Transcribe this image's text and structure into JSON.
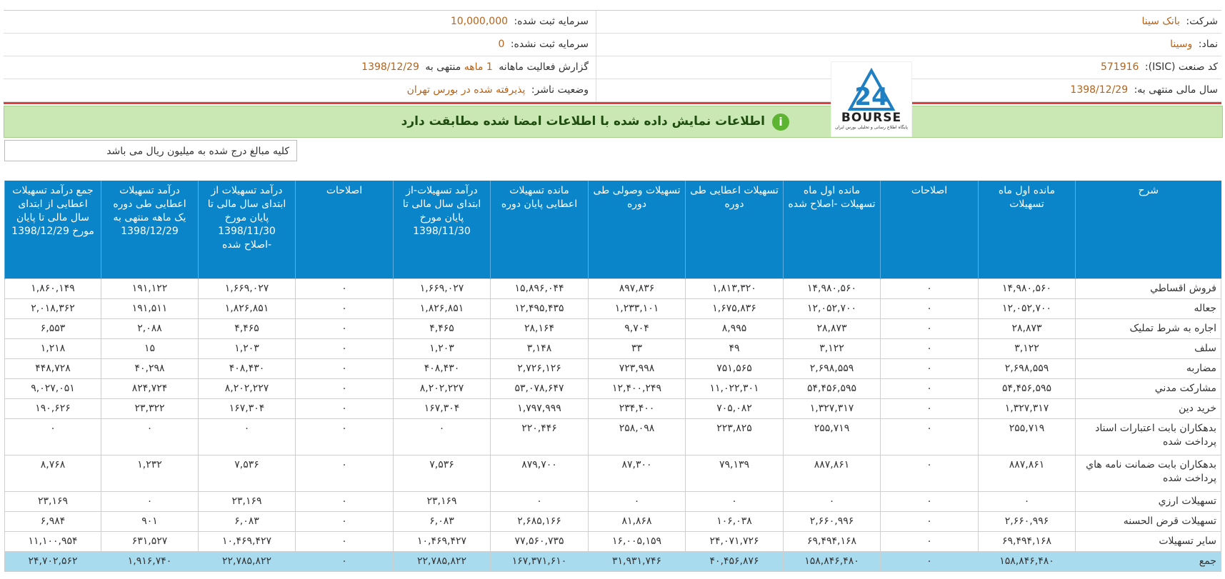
{
  "company": {
    "company_label": "شرکت:",
    "company_value": "بانک سینا",
    "symbol_label": "نماد:",
    "symbol_value": "وسینا",
    "isic_label": "کد صنعت (ISIC):",
    "isic_value": "571916",
    "fiscal_label": "سال مالی منتهی به:",
    "fiscal_value": "1398/12/29",
    "capital_label": "سرمایه ثبت شده:",
    "capital_value": "10,000,000",
    "unreg_label": "سرمایه ثبت نشده:",
    "unreg_value": "0",
    "report_prefix": "گزارش فعالیت ماهانه",
    "report_period": "1 ماهه",
    "report_mid": "منتهی به",
    "report_date": "1398/12/29",
    "status_label": "وضعیت ناشر:",
    "status_value": "پذیرفته شده در بورس تهران"
  },
  "logo": {
    "text": "BOURSE",
    "subtitle": "پایگاه اطلاع رسانی و تحلیلی بورس ایران",
    "icon": "bourse-24-logo"
  },
  "banner": {
    "text": "اطلاعات نمایش داده شده با اطلاعات امضا شده مطابقت دارد",
    "icon": "info-check-icon",
    "color": "#c9e8b4"
  },
  "note": "کلیه مبالغ درج شده به میلیون ریال می باشد",
  "headers": [
    "شرح",
    "مانده اول ماه تسهیلات",
    "اصلاحات",
    "مانده اول ماه تسهیلات -اصلاح شده",
    "تسهیلات اعطایی طی دوره",
    "تسهیلات وصولی طی دوره",
    "مانده تسهیلات اعطایی پایان دوره",
    "درآمد تسهیلات-از ابتدای سال مالی تا پایان مورخ 1398/11/30",
    "اصلاحات",
    "درآمد تسهیلات از ابتدای سال مالی تا پایان مورخ 1398/11/30 -اصلاح شده",
    "درآمد تسهیلات اعطایی طی دوره یک ماهه منتهی به 1398/12/29",
    "جمع درآمد تسهیلات اعطایی از ابتدای سال مالی تا پایان مورخ 1398/12/29"
  ],
  "rows": [
    [
      "فروش اقساطي",
      "۱۴,۹۸۰,۵۶۰",
      "۰",
      "۱۴,۹۸۰,۵۶۰",
      "۱,۸۱۳,۳۲۰",
      "۸۹۷,۸۳۶",
      "۱۵,۸۹۶,۰۴۴",
      "۱,۶۶۹,۰۲۷",
      "۰",
      "۱,۶۶۹,۰۲۷",
      "۱۹۱,۱۲۲",
      "۱,۸۶۰,۱۴۹"
    ],
    [
      "جعاله",
      "۱۲,۰۵۲,۷۰۰",
      "۰",
      "۱۲,۰۵۲,۷۰۰",
      "۱,۶۷۵,۸۳۶",
      "۱,۲۳۳,۱۰۱",
      "۱۲,۴۹۵,۴۳۵",
      "۱,۸۲۶,۸۵۱",
      "۰",
      "۱,۸۲۶,۸۵۱",
      "۱۹۱,۵۱۱",
      "۲,۰۱۸,۳۶۲"
    ],
    [
      "اجاره به شرط تمليک",
      "۲۸,۸۷۳",
      "۰",
      "۲۸,۸۷۳",
      "۸,۹۹۵",
      "۹,۷۰۴",
      "۲۸,۱۶۴",
      "۴,۴۶۵",
      "۰",
      "۴,۴۶۵",
      "۲,۰۸۸",
      "۶,۵۵۳"
    ],
    [
      "سلف",
      "۳,۱۲۲",
      "۰",
      "۳,۱۲۲",
      "۴۹",
      "۳۳",
      "۳,۱۴۸",
      "۱,۲۰۳",
      "۰",
      "۱,۲۰۳",
      "۱۵",
      "۱,۲۱۸"
    ],
    [
      "مضاربه",
      "۲,۶۹۸,۵۵۹",
      "۰",
      "۲,۶۹۸,۵۵۹",
      "۷۵۱,۵۶۵",
      "۷۲۳,۹۹۸",
      "۲,۷۲۶,۱۲۶",
      "۴۰۸,۴۳۰",
      "۰",
      "۴۰۸,۴۳۰",
      "۴۰,۲۹۸",
      "۴۴۸,۷۲۸"
    ],
    [
      "مشارکت مدني",
      "۵۴,۴۵۶,۵۹۵",
      "۰",
      "۵۴,۴۵۶,۵۹۵",
      "۱۱,۰۲۲,۳۰۱",
      "۱۲,۴۰۰,۲۴۹",
      "۵۳,۰۷۸,۶۴۷",
      "۸,۲۰۲,۲۲۷",
      "۰",
      "۸,۲۰۲,۲۲۷",
      "۸۲۴,۷۲۴",
      "۹,۰۲۷,۰۵۱"
    ],
    [
      "خريد دين",
      "۱,۳۲۷,۳۱۷",
      "۰",
      "۱,۳۲۷,۳۱۷",
      "۷۰۵,۰۸۲",
      "۲۳۴,۴۰۰",
      "۱,۷۹۷,۹۹۹",
      "۱۶۷,۳۰۴",
      "۰",
      "۱۶۷,۳۰۴",
      "۲۳,۳۲۲",
      "۱۹۰,۶۲۶"
    ],
    [
      "بدهکاران بابت اعتبارات اسناد پرداخت شده",
      "۲۵۵,۷۱۹",
      "۰",
      "۲۵۵,۷۱۹",
      "۲۲۳,۸۲۵",
      "۲۵۸,۰۹۸",
      "۲۲۰,۴۴۶",
      "۰",
      "۰",
      "۰",
      "۰",
      "۰"
    ],
    [
      "بدهکاران بابت ضمانت نامه هاي پرداخت شده",
      "۸۸۷,۸۶۱",
      "۰",
      "۸۸۷,۸۶۱",
      "۷۹,۱۳۹",
      "۸۷,۳۰۰",
      "۸۷۹,۷۰۰",
      "۷,۵۳۶",
      "۰",
      "۷,۵۳۶",
      "۱,۲۳۲",
      "۸,۷۶۸"
    ],
    [
      "تسهيلات ارزي",
      "۰",
      "۰",
      "۰",
      "۰",
      "۰",
      "۰",
      "۲۳,۱۶۹",
      "۰",
      "۲۳,۱۶۹",
      "۰",
      "۲۳,۱۶۹"
    ],
    [
      "تسهيلات قرض الحسنه",
      "۲,۶۶۰,۹۹۶",
      "۰",
      "۲,۶۶۰,۹۹۶",
      "۱۰۶,۰۳۸",
      "۸۱,۸۶۸",
      "۲,۶۸۵,۱۶۶",
      "۶,۰۸۳",
      "۰",
      "۶,۰۸۳",
      "۹۰۱",
      "۶,۹۸۴"
    ],
    [
      "ساير تسهيلات",
      "۶۹,۴۹۴,۱۶۸",
      "۰",
      "۶۹,۴۹۴,۱۶۸",
      "۲۴,۰۷۱,۷۲۶",
      "۱۶,۰۰۵,۱۵۹",
      "۷۷,۵۶۰,۷۳۵",
      "۱۰,۴۶۹,۴۲۷",
      "۰",
      "۱۰,۴۶۹,۴۲۷",
      "۶۳۱,۵۲۷",
      "۱۱,۱۰۰,۹۵۴"
    ]
  ],
  "total": [
    "جمع",
    "۱۵۸,۸۴۶,۴۸۰",
    "۰",
    "۱۵۸,۸۴۶,۴۸۰",
    "۴۰,۴۵۶,۸۷۶",
    "۳۱,۹۳۱,۷۴۶",
    "۱۶۷,۳۷۱,۶۱۰",
    "۲۲,۷۸۵,۸۲۲",
    "۰",
    "۲۲,۷۸۵,۸۲۲",
    "۱,۹۱۶,۷۴۰",
    "۲۴,۷۰۲,۵۶۲"
  ]
}
